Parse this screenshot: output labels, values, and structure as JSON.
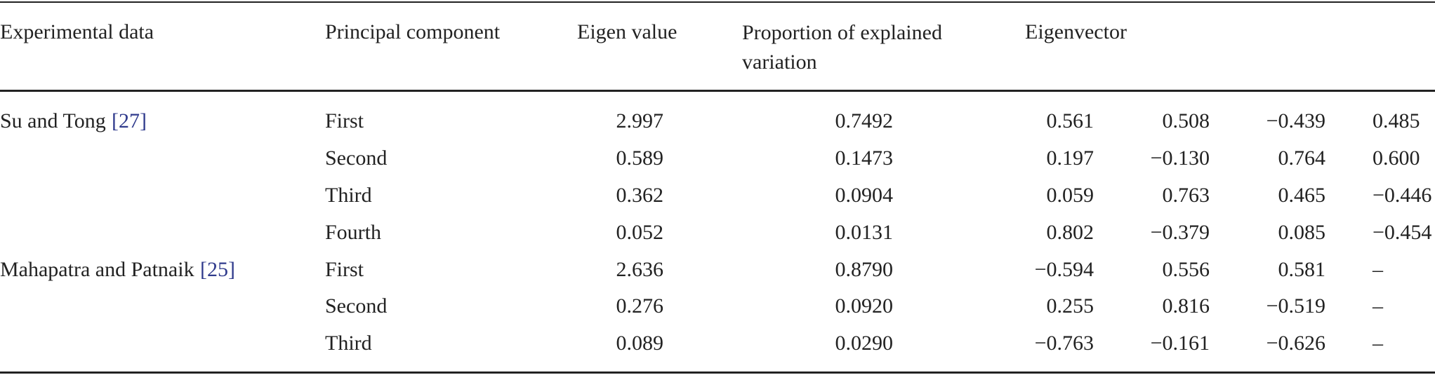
{
  "table": {
    "header": [
      "Experimental data",
      "Principal component",
      "Eigen value",
      "Proportion of explained variation",
      "Eigenvector"
    ],
    "groups": [
      {
        "experiment": "Su and Tong",
        "ref": "[27]",
        "rows": [
          [
            "First",
            "2.997",
            "0.7492",
            "0.561",
            "0.508",
            "−0.439",
            "0.485"
          ],
          [
            "Second",
            "0.589",
            "0.1473",
            "0.197",
            "−0.130",
            "0.764",
            "0.600"
          ],
          [
            "Third",
            "0.362",
            "0.0904",
            "0.059",
            "0.763",
            "0.465",
            "−0.446"
          ],
          [
            "Fourth",
            "0.052",
            "0.0131",
            "0.802",
            "−0.379",
            "0.085",
            "−0.454"
          ]
        ]
      },
      {
        "experiment": "Mahapatra and Patnaik",
        "ref": "[25]",
        "rows": [
          [
            "First",
            "2.636",
            "0.8790",
            "−0.594",
            "0.556",
            "0.581",
            "–"
          ],
          [
            "Second",
            "0.276",
            "0.0920",
            "0.255",
            "0.816",
            "−0.519",
            "–"
          ],
          [
            "Third",
            "0.089",
            "0.0290",
            "−0.763",
            "−0.161",
            "−0.626",
            "–"
          ]
        ]
      }
    ]
  }
}
